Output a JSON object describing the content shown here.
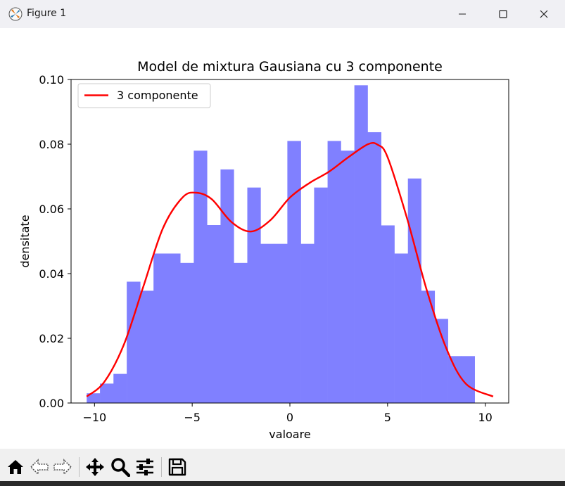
{
  "window": {
    "title": "Figure 1"
  },
  "toolbar": {
    "tools": [
      "home-icon",
      "back-icon",
      "forward-icon",
      "pan-icon",
      "zoom-icon",
      "configure-subplots-icon",
      "save-icon"
    ]
  },
  "colors": {
    "bars": "#8080ff",
    "curve": "#ff0000",
    "axes": "#000000"
  },
  "chart_data": {
    "type": "bar",
    "title": "Model de mixtura Gausiana cu 3 componente",
    "xlabel": "valoare",
    "ylabel": "densitate",
    "xlim": [
      -11.2,
      11.2
    ],
    "ylim": [
      0,
      0.1
    ],
    "xticks": [
      -10,
      -5,
      0,
      5,
      10
    ],
    "xtick_labels": [
      "−10",
      "−5",
      "0",
      "5",
      "10"
    ],
    "yticks": [
      0,
      0.02,
      0.04,
      0.06,
      0.08,
      0.1
    ],
    "ytick_labels": [
      "0.00",
      "0.02",
      "0.04",
      "0.06",
      "0.08",
      "0.10"
    ],
    "grid": false,
    "legend": {
      "placement": "top-left",
      "entries": [
        "3 componente"
      ]
    },
    "histogram": {
      "bin_edges": [
        -10.4,
        -9.72,
        -9.03,
        -8.35,
        -7.66,
        -6.98,
        -6.29,
        -5.61,
        -4.92,
        -4.24,
        -3.55,
        -2.87,
        -2.18,
        -1.5,
        -0.81,
        -0.13,
        0.56,
        1.24,
        1.93,
        2.61,
        3.3,
        3.98,
        4.67,
        5.35,
        6.04,
        6.72,
        7.41,
        8.09,
        8.78,
        9.46,
        10.15
      ],
      "densities": [
        0.003,
        0.006,
        0.009,
        0.0375,
        0.0347,
        0.0462,
        0.0462,
        0.0433,
        0.078,
        0.055,
        0.0722,
        0.0433,
        0.0666,
        0.0492,
        0.0492,
        0.081,
        0.0492,
        0.0666,
        0.081,
        0.078,
        0.0982,
        0.0837,
        0.0549,
        0.0462,
        0.0694,
        0.0347,
        0.026,
        0.0145,
        0.0145,
        0.0
      ]
    },
    "series": [
      {
        "name": "3 componente",
        "type": "line",
        "x": [
          -10.4,
          -9.5,
          -8.5,
          -7.5,
          -6.5,
          -5.5,
          -4.8,
          -4.0,
          -3.0,
          -2.0,
          -1.0,
          0.0,
          1.0,
          2.0,
          3.0,
          4.0,
          4.5,
          5.0,
          6.0,
          7.0,
          8.0,
          9.0,
          10.4
        ],
        "values": [
          0.002,
          0.0065,
          0.018,
          0.036,
          0.054,
          0.0635,
          0.065,
          0.063,
          0.056,
          0.053,
          0.0565,
          0.0635,
          0.068,
          0.0715,
          0.076,
          0.08,
          0.0798,
          0.076,
          0.057,
          0.035,
          0.017,
          0.006,
          0.002
        ]
      }
    ]
  }
}
